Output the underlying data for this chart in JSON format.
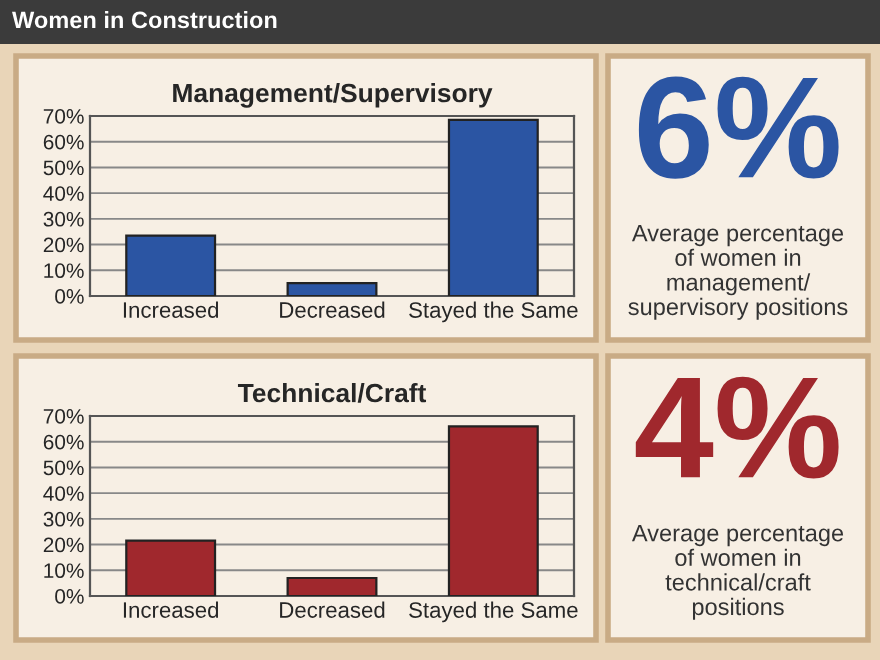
{
  "chart_data": [
    {
      "type": "other",
      "title": "Women in Construction"
    },
    {
      "type": "bar",
      "title": "Management/Supervisory",
      "categories": [
        "Increased",
        "Decreased",
        "Stayed the Same"
      ],
      "values": [
        23.5,
        5,
        68.5
      ],
      "color": "#2b55a3",
      "ylim": [
        0,
        70
      ],
      "yticks": [
        {
          "value": 0,
          "label": "0%"
        },
        {
          "value": 10,
          "label": "10%"
        },
        {
          "value": 20,
          "label": "20%"
        },
        {
          "value": 30,
          "label": "30%"
        },
        {
          "value": 40,
          "label": "40%"
        },
        {
          "value": 50,
          "label": "50%"
        },
        {
          "value": 60,
          "label": "60%"
        },
        {
          "value": 70,
          "label": "70%"
        }
      ],
      "grid": "y"
    },
    {
      "type": "other",
      "color": "#2b55a3",
      "annotations": [
        "6%",
        "Average percentage\nof women in\nmanagement/\nsupervisory positions"
      ]
    },
    {
      "type": "bar",
      "title": "Technical/Craft",
      "categories": [
        "Increased",
        "Decreased",
        "Stayed the Same"
      ],
      "values": [
        21.5,
        7,
        66
      ],
      "color": "#a0282d",
      "ylim": [
        0,
        70
      ],
      "yticks": [
        {
          "value": 0,
          "label": "0%"
        },
        {
          "value": 10,
          "label": "10%"
        },
        {
          "value": 20,
          "label": "20%"
        },
        {
          "value": 30,
          "label": "30%"
        },
        {
          "value": 40,
          "label": "40%"
        },
        {
          "value": 50,
          "label": "50%"
        },
        {
          "value": 60,
          "label": "60%"
        },
        {
          "value": 70,
          "label": "70%"
        }
      ],
      "grid": "y"
    },
    {
      "type": "other",
      "color": "#a0282d",
      "annotations": [
        "4%",
        "Average percentage\nof women in\ntechnical/craft\npositions"
      ]
    }
  ]
}
